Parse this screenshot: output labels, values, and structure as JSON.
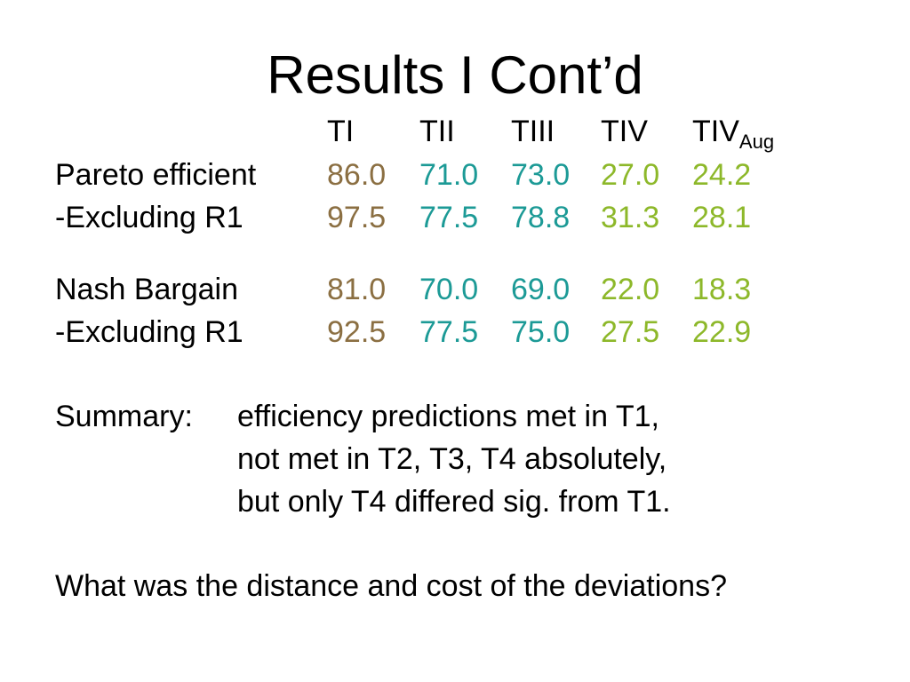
{
  "slide": {
    "title": "Results I Cont’d"
  },
  "colors": {
    "t1": "#8B6F42",
    "t2": "#1C9A96",
    "t3": "#1C9A96",
    "t4": "#8DB82A",
    "t4aug": "#8DB82A"
  },
  "table": {
    "headers": {
      "t1": "TI",
      "t2": "TII",
      "t3": "TIII",
      "t4": "TIV",
      "t4aug_main": "TIV",
      "t4aug_sub": "Aug"
    },
    "rows": [
      {
        "label": "Pareto efficient",
        "values": [
          "86.0",
          "71.0",
          "73.0",
          "27.0",
          "24.2"
        ]
      },
      {
        "label": "-Excluding R1",
        "values": [
          "97.5",
          "77.5",
          "78.8",
          "31.3",
          "28.1"
        ]
      },
      {
        "label": "Nash Bargain",
        "values": [
          "81.0",
          "70.0",
          "69.0",
          "22.0",
          "18.3"
        ]
      },
      {
        "label": "-Excluding R1",
        "values": [
          "92.5",
          "77.5",
          "75.0",
          "27.5",
          "22.9"
        ]
      }
    ]
  },
  "summary": {
    "label": "Summary:",
    "lines": [
      "efficiency predictions met in T1,",
      "not met in T2, T3, T4 absolutely,",
      "but only T4 differed sig. from T1."
    ]
  },
  "question": "What was the distance and cost of the deviations?"
}
